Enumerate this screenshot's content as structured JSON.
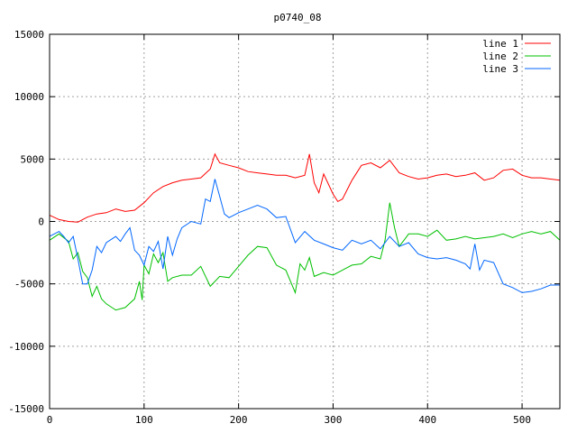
{
  "chart_data": {
    "type": "line",
    "title": "p0740_08",
    "xlabel": "",
    "ylabel": "",
    "xlim": [
      0,
      540
    ],
    "ylim": [
      -15000,
      15000
    ],
    "xticks": [
      0,
      100,
      200,
      300,
      400,
      500
    ],
    "yticks": [
      -15000,
      -10000,
      -5000,
      0,
      5000,
      10000,
      15000
    ],
    "grid": true,
    "legend": "top-right",
    "series": [
      {
        "name": "line 1",
        "color": "#ff0000",
        "points": [
          [
            0,
            500
          ],
          [
            10,
            150
          ],
          [
            20,
            0
          ],
          [
            30,
            -50
          ],
          [
            40,
            350
          ],
          [
            50,
            600
          ],
          [
            60,
            700
          ],
          [
            70,
            1000
          ],
          [
            80,
            800
          ],
          [
            90,
            900
          ],
          [
            100,
            1500
          ],
          [
            110,
            2300
          ],
          [
            120,
            2800
          ],
          [
            130,
            3100
          ],
          [
            140,
            3300
          ],
          [
            150,
            3400
          ],
          [
            160,
            3500
          ],
          [
            170,
            4200
          ],
          [
            175,
            5400
          ],
          [
            180,
            4700
          ],
          [
            190,
            4500
          ],
          [
            200,
            4300
          ],
          [
            210,
            4000
          ],
          [
            220,
            3900
          ],
          [
            230,
            3800
          ],
          [
            240,
            3700
          ],
          [
            250,
            3700
          ],
          [
            260,
            3500
          ],
          [
            270,
            3700
          ],
          [
            275,
            5400
          ],
          [
            280,
            3100
          ],
          [
            285,
            2300
          ],
          [
            290,
            3800
          ],
          [
            300,
            2200
          ],
          [
            305,
            1600
          ],
          [
            310,
            1800
          ],
          [
            320,
            3300
          ],
          [
            330,
            4500
          ],
          [
            340,
            4700
          ],
          [
            350,
            4300
          ],
          [
            360,
            4900
          ],
          [
            370,
            3900
          ],
          [
            380,
            3600
          ],
          [
            390,
            3400
          ],
          [
            400,
            3500
          ],
          [
            410,
            3700
          ],
          [
            420,
            3800
          ],
          [
            430,
            3600
          ],
          [
            440,
            3700
          ],
          [
            450,
            3900
          ],
          [
            460,
            3300
          ],
          [
            470,
            3500
          ],
          [
            480,
            4100
          ],
          [
            490,
            4200
          ],
          [
            500,
            3700
          ],
          [
            510,
            3500
          ],
          [
            520,
            3500
          ],
          [
            530,
            3400
          ],
          [
            540,
            3300
          ]
        ]
      },
      {
        "name": "line 2",
        "color": "#00c000",
        "points": [
          [
            0,
            -1500
          ],
          [
            10,
            -1000
          ],
          [
            20,
            -1600
          ],
          [
            25,
            -3000
          ],
          [
            30,
            -2500
          ],
          [
            35,
            -4000
          ],
          [
            40,
            -4500
          ],
          [
            45,
            -6000
          ],
          [
            50,
            -5200
          ],
          [
            55,
            -6200
          ],
          [
            60,
            -6600
          ],
          [
            70,
            -7100
          ],
          [
            80,
            -6900
          ],
          [
            90,
            -6200
          ],
          [
            95,
            -4800
          ],
          [
            98,
            -6300
          ],
          [
            100,
            -3500
          ],
          [
            105,
            -4200
          ],
          [
            110,
            -2600
          ],
          [
            115,
            -3300
          ],
          [
            120,
            -2500
          ],
          [
            125,
            -4800
          ],
          [
            130,
            -4500
          ],
          [
            140,
            -4300
          ],
          [
            150,
            -4300
          ],
          [
            160,
            -3600
          ],
          [
            170,
            -5200
          ],
          [
            180,
            -4400
          ],
          [
            190,
            -4500
          ],
          [
            200,
            -3600
          ],
          [
            210,
            -2700
          ],
          [
            220,
            -2000
          ],
          [
            230,
            -2100
          ],
          [
            240,
            -3500
          ],
          [
            250,
            -3900
          ],
          [
            260,
            -5700
          ],
          [
            265,
            -3400
          ],
          [
            270,
            -3900
          ],
          [
            275,
            -2900
          ],
          [
            280,
            -4400
          ],
          [
            290,
            -4100
          ],
          [
            300,
            -4300
          ],
          [
            310,
            -3900
          ],
          [
            320,
            -3500
          ],
          [
            330,
            -3400
          ],
          [
            340,
            -2800
          ],
          [
            350,
            -3000
          ],
          [
            355,
            -1500
          ],
          [
            360,
            1500
          ],
          [
            365,
            -500
          ],
          [
            370,
            -2000
          ],
          [
            375,
            -1500
          ],
          [
            380,
            -1000
          ],
          [
            390,
            -1000
          ],
          [
            400,
            -1200
          ],
          [
            410,
            -700
          ],
          [
            420,
            -1500
          ],
          [
            430,
            -1400
          ],
          [
            440,
            -1200
          ],
          [
            450,
            -1400
          ],
          [
            460,
            -1300
          ],
          [
            470,
            -1200
          ],
          [
            480,
            -1000
          ],
          [
            490,
            -1300
          ],
          [
            500,
            -1000
          ],
          [
            510,
            -800
          ],
          [
            520,
            -1000
          ],
          [
            530,
            -800
          ],
          [
            540,
            -1500
          ]
        ]
      },
      {
        "name": "line 3",
        "color": "#0066ff",
        "points": [
          [
            0,
            -1200
          ],
          [
            5,
            -1000
          ],
          [
            10,
            -800
          ],
          [
            15,
            -1200
          ],
          [
            20,
            -1700
          ],
          [
            25,
            -1200
          ],
          [
            30,
            -3000
          ],
          [
            35,
            -5000
          ],
          [
            40,
            -5000
          ],
          [
            45,
            -3900
          ],
          [
            50,
            -2000
          ],
          [
            55,
            -2500
          ],
          [
            60,
            -1700
          ],
          [
            70,
            -1200
          ],
          [
            75,
            -1600
          ],
          [
            80,
            -1000
          ],
          [
            85,
            -500
          ],
          [
            90,
            -2300
          ],
          [
            95,
            -2700
          ],
          [
            100,
            -3500
          ],
          [
            105,
            -2000
          ],
          [
            110,
            -2400
          ],
          [
            115,
            -1600
          ],
          [
            120,
            -3800
          ],
          [
            125,
            -1200
          ],
          [
            130,
            -2700
          ],
          [
            135,
            -1400
          ],
          [
            140,
            -500
          ],
          [
            150,
            0
          ],
          [
            160,
            -200
          ],
          [
            165,
            1800
          ],
          [
            170,
            1600
          ],
          [
            175,
            3400
          ],
          [
            180,
            2000
          ],
          [
            185,
            600
          ],
          [
            190,
            300
          ],
          [
            200,
            700
          ],
          [
            210,
            1000
          ],
          [
            220,
            1300
          ],
          [
            230,
            1000
          ],
          [
            240,
            300
          ],
          [
            250,
            400
          ],
          [
            260,
            -1700
          ],
          [
            270,
            -800
          ],
          [
            280,
            -1500
          ],
          [
            290,
            -1800
          ],
          [
            300,
            -2100
          ],
          [
            310,
            -2300
          ],
          [
            320,
            -1500
          ],
          [
            330,
            -1800
          ],
          [
            340,
            -1500
          ],
          [
            350,
            -2200
          ],
          [
            360,
            -1200
          ],
          [
            370,
            -2000
          ],
          [
            380,
            -1700
          ],
          [
            390,
            -2600
          ],
          [
            400,
            -2900
          ],
          [
            410,
            -3000
          ],
          [
            420,
            -2900
          ],
          [
            430,
            -3100
          ],
          [
            440,
            -3400
          ],
          [
            445,
            -3800
          ],
          [
            450,
            -1800
          ],
          [
            455,
            -3900
          ],
          [
            460,
            -3100
          ],
          [
            470,
            -3300
          ],
          [
            480,
            -5000
          ],
          [
            490,
            -5300
          ],
          [
            500,
            -5700
          ],
          [
            510,
            -5600
          ],
          [
            520,
            -5400
          ],
          [
            530,
            -5100
          ],
          [
            540,
            -5100
          ]
        ]
      }
    ]
  }
}
